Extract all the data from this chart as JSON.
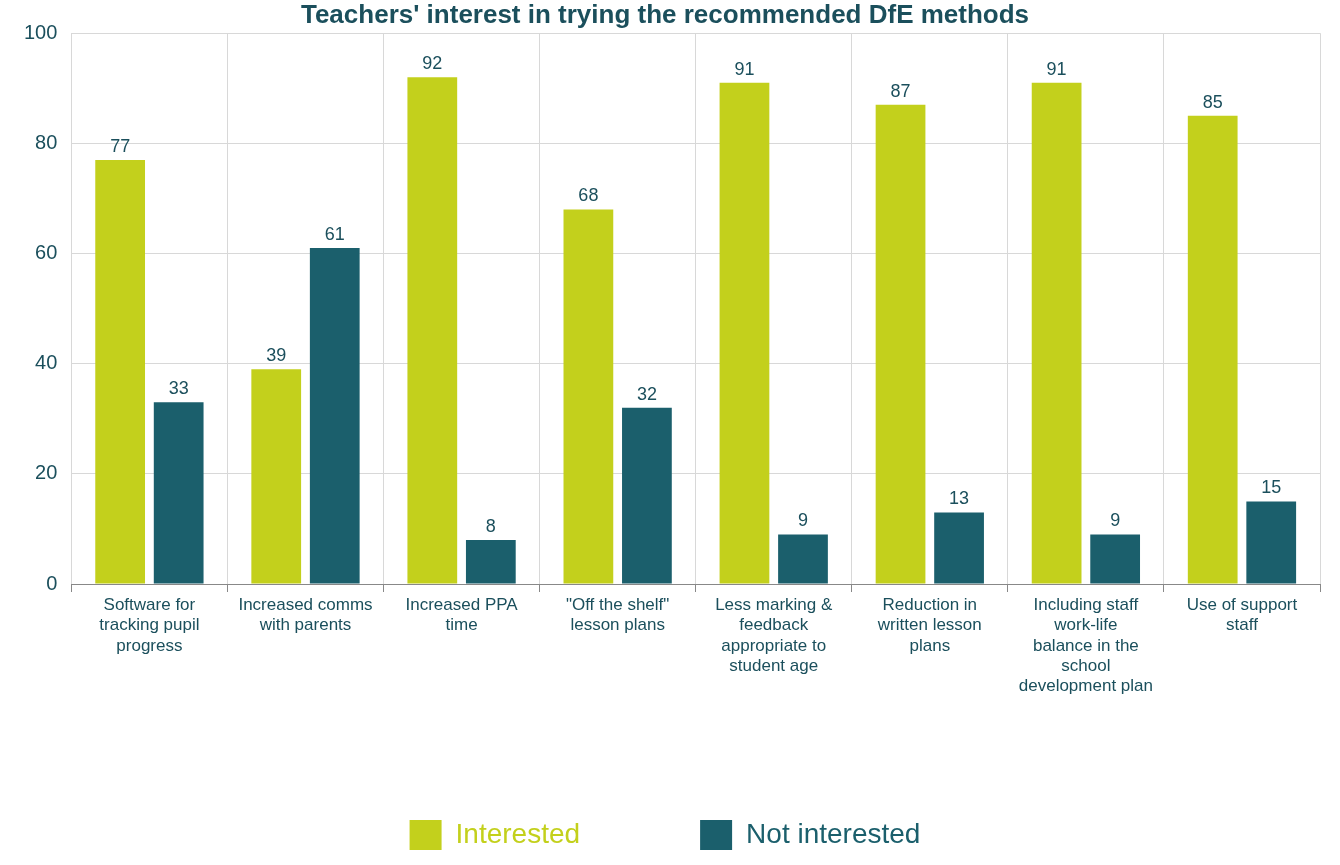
{
  "chart_data": {
    "type": "bar",
    "title": "Teachers' interest in trying the recommended DfE methods",
    "categories": [
      "Software for tracking pupil progress",
      "Increased comms with parents",
      "Increased PPA time",
      "\"Off the shelf\" lesson plans",
      "Less marking & feedback appropriate to student age",
      "Reduction in written lesson plans",
      "Including staff work-life balance in the school development plan",
      "Use of support staff"
    ],
    "series": [
      {
        "name": "Interested",
        "color": "#c3d01c",
        "values": [
          77,
          39,
          92,
          68,
          91,
          87,
          91,
          85
        ]
      },
      {
        "name": "Not interested",
        "color": "#1b5f6c",
        "values": [
          33,
          61,
          8,
          32,
          9,
          13,
          9,
          15
        ]
      }
    ],
    "ylim": [
      0,
      100
    ],
    "yticks": [
      0,
      20,
      40,
      60,
      80,
      100
    ],
    "grid": true,
    "legend": "bottom",
    "data_labels": true
  }
}
